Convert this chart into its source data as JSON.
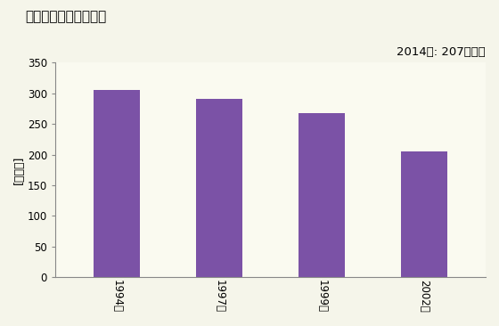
{
  "title": "商業の事業所数の推移",
  "ylabel": "[事業所]",
  "categories": [
    "1994年",
    "1997年",
    "1999年",
    "2002年"
  ],
  "values": [
    305,
    291,
    267,
    205
  ],
  "bar_color": "#7B52A6",
  "ylim": [
    0,
    350
  ],
  "yticks": [
    0,
    50,
    100,
    150,
    200,
    250,
    300,
    350
  ],
  "annotation": "2014年: 207事業所",
  "background_color": "#F5F5EA",
  "plot_bg_color": "#FAFAF0",
  "title_fontsize": 11,
  "label_fontsize": 9,
  "tick_fontsize": 8.5,
  "annotation_fontsize": 9.5
}
